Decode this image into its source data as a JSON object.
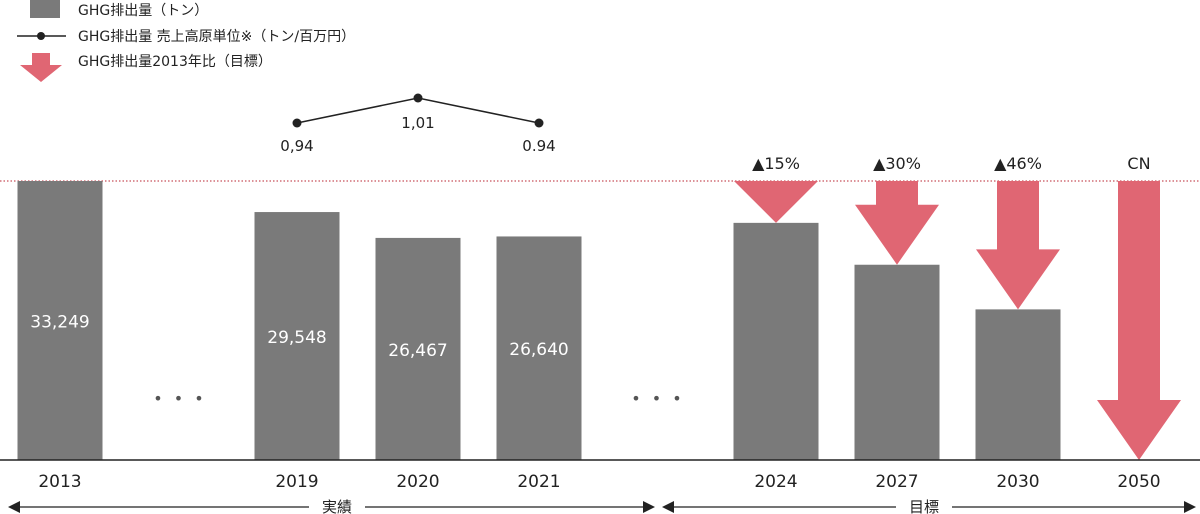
{
  "chart_data": {
    "type": "bar",
    "categories": [
      "2013",
      "2019",
      "2020",
      "2021",
      "2024",
      "2027",
      "2030",
      "2050"
    ],
    "series": [
      {
        "name": "GHG排出量（トン）",
        "type": "bar",
        "values": [
          33249,
          29548,
          26467,
          26640,
          28260,
          23270,
          17950,
          0
        ],
        "labels": [
          "33,249",
          "29,548",
          "26,467",
          "26,640",
          "",
          "",
          "",
          ""
        ]
      },
      {
        "name": "GHG排出量 売上高原単位※（トン/百万円）",
        "type": "line",
        "x": [
          "2019",
          "2020",
          "2021"
        ],
        "values": [
          0.94,
          1.01,
          0.94
        ],
        "labels": [
          "0,94",
          "1,01",
          "0.94"
        ]
      },
      {
        "name": "GHG排出量2013年比（目標）",
        "type": "arrow",
        "x": [
          "2024",
          "2027",
          "2030",
          "2050"
        ],
        "labels": [
          "▲15%",
          "▲30%",
          "▲46%",
          "CN"
        ],
        "reduction_percent": [
          15,
          30,
          46,
          100
        ]
      }
    ],
    "gap_marker": "• • •",
    "periods": [
      {
        "label": "実績",
        "from": "2013",
        "to": "2021"
      },
      {
        "label": "目標",
        "from": "2024",
        "to": "2050"
      }
    ],
    "baseline_value": 33249,
    "colors": {
      "bar": "#7a7a7a",
      "arrow": "#e06673",
      "line": "#222222",
      "reference_line": "#c8505a",
      "bar_label": "#ffffff"
    }
  }
}
